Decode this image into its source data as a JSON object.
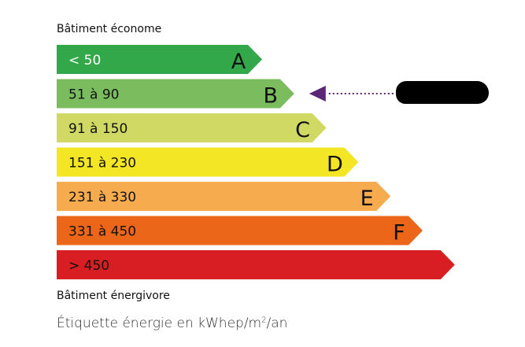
{
  "top_label": "Bâtiment économe",
  "bottom_label": "Bâtiment énergivore",
  "unit_label": {
    "prefix": "Étiquette énergie en kWhep/m",
    "sup": "2",
    "suffix": "/an"
  },
  "classes": [
    {
      "range": "< 50",
      "letter": "A",
      "color": "#33a84a",
      "text_color": "#ffffff"
    },
    {
      "range": "51 à 90",
      "letter": "B",
      "color": "#7bbd5e",
      "text_color": "#111111"
    },
    {
      "range": "91 à 150",
      "letter": "C",
      "color": "#cfd963",
      "text_color": "#111111"
    },
    {
      "range": "151 à 230",
      "letter": "D",
      "color": "#f3e624",
      "text_color": "#111111"
    },
    {
      "range": "231 à 330",
      "letter": "E",
      "color": "#f6ab4e",
      "text_color": "#111111"
    },
    {
      "range": "331 à 450",
      "letter": "F",
      "color": "#eb6619",
      "text_color": "#111111"
    },
    {
      "range": "> 450",
      "letter": "",
      "color": "#d81e22",
      "text_color": "#111111"
    }
  ],
  "indicator": {
    "class": "B",
    "color": "#5b2675"
  }
}
